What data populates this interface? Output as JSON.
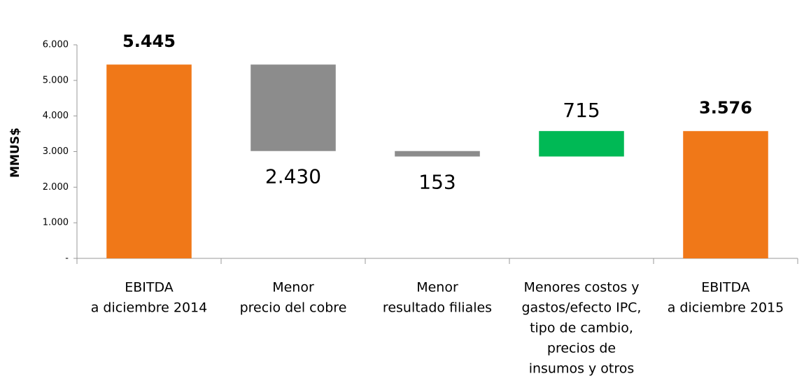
{
  "chart_data": {
    "type": "waterfall",
    "ylabel": "MMUS$",
    "categories": [
      [
        "EBITDA",
        "a diciembre 2014"
      ],
      [
        "Menor",
        "precio del cobre"
      ],
      [
        "Menor",
        "resultado filiales"
      ],
      [
        "Menores costos y",
        "gastos/efecto IPC,",
        "tipo de cambio,",
        "precios de",
        "insumos y otros"
      ],
      [
        "EBITDA",
        "a diciembre 2015"
      ]
    ],
    "values": [
      5445,
      -2430,
      -153,
      715,
      3576
    ],
    "value_labels": [
      "5.445",
      "2.430",
      "153",
      "715",
      "3.576"
    ],
    "measures": [
      "total",
      "relative",
      "relative",
      "relative",
      "total"
    ],
    "colors": {
      "total": "#f07818",
      "decrease": "#8c8c8c",
      "increase": "#00b955"
    },
    "ylim": [
      0,
      6000
    ],
    "yticks": [
      {
        "value": 0,
        "label": "-"
      },
      {
        "value": 1000,
        "label": "1.000"
      },
      {
        "value": 2000,
        "label": "2.000"
      },
      {
        "value": 3000,
        "label": "3.000"
      },
      {
        "value": 4000,
        "label": "4.000"
      },
      {
        "value": 5000,
        "label": "5.000"
      },
      {
        "value": 6000,
        "label": "6.000"
      }
    ]
  }
}
